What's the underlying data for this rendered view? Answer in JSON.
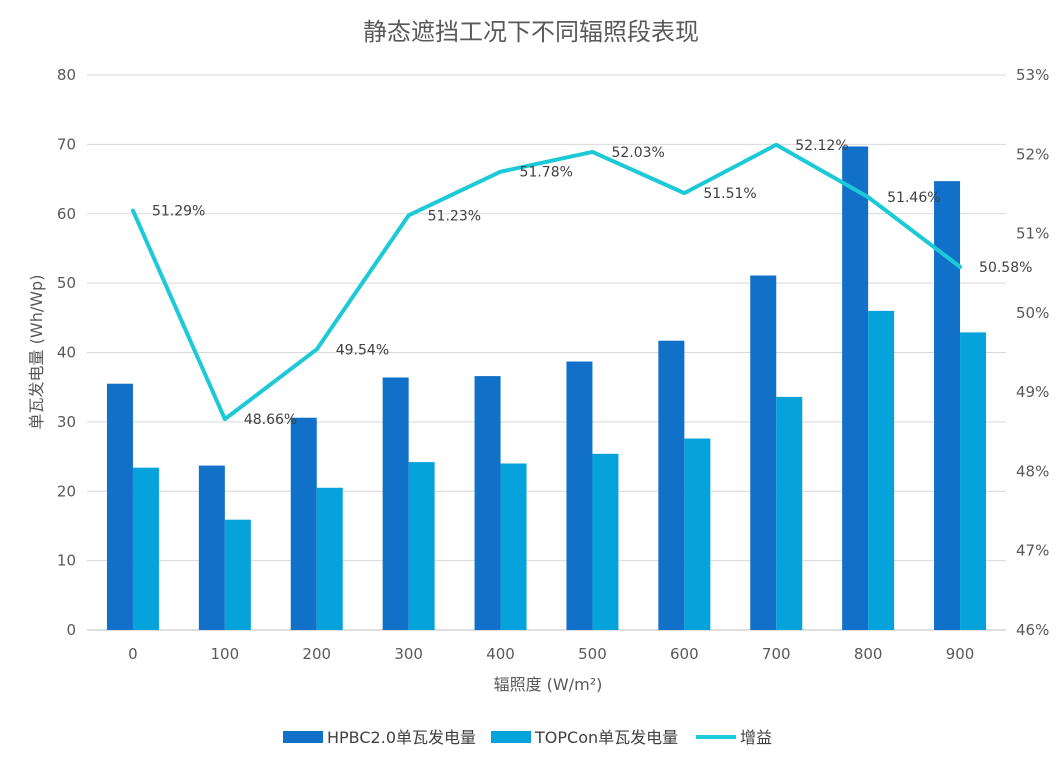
{
  "chart_data": {
    "type": "bar",
    "title": "静态遮挡工况下不同辐照段表现",
    "xlabel": "辐照度 (W/m²)",
    "ylabel": "单瓦发电量 (Wh/Wp)",
    "categories": [
      "0",
      "100",
      "200",
      "300",
      "400",
      "500",
      "600",
      "700",
      "800",
      "900"
    ],
    "ylim": [
      0,
      80
    ],
    "yticks": [
      "0",
      "10",
      "20",
      "30",
      "40",
      "50",
      "60",
      "70",
      "80"
    ],
    "y2lim": [
      46,
      53
    ],
    "y2ticks": [
      "46%",
      "47%",
      "48%",
      "49%",
      "50%",
      "51%",
      "52%",
      "53%"
    ],
    "grid": true,
    "legend_position": "bottom",
    "series": [
      {
        "name": "HPBC2.0单瓦发电量",
        "type": "bar",
        "axis": "left",
        "color": "#1170C8",
        "values": [
          35.5,
          23.7,
          30.6,
          36.4,
          36.6,
          38.7,
          41.7,
          51.1,
          69.7,
          64.7
        ]
      },
      {
        "name": "TOPCon单瓦发电量",
        "type": "bar",
        "axis": "left",
        "color": "#05A2DB",
        "values": [
          23.4,
          15.9,
          20.5,
          24.2,
          24.0,
          25.4,
          27.6,
          33.6,
          46.0,
          42.9
        ]
      },
      {
        "name": "增益",
        "type": "line",
        "axis": "right",
        "color": "#1CC9D6",
        "values": [
          51.29,
          48.66,
          49.54,
          51.23,
          51.78,
          52.03,
          51.51,
          52.12,
          51.46,
          50.58
        ],
        "labels": [
          "51.29%",
          "48.66%",
          "49.54%",
          "51.23%",
          "51.78%",
          "52.03%",
          "51.51%",
          "52.12%",
          "51.46%",
          "50.58%"
        ]
      }
    ]
  }
}
